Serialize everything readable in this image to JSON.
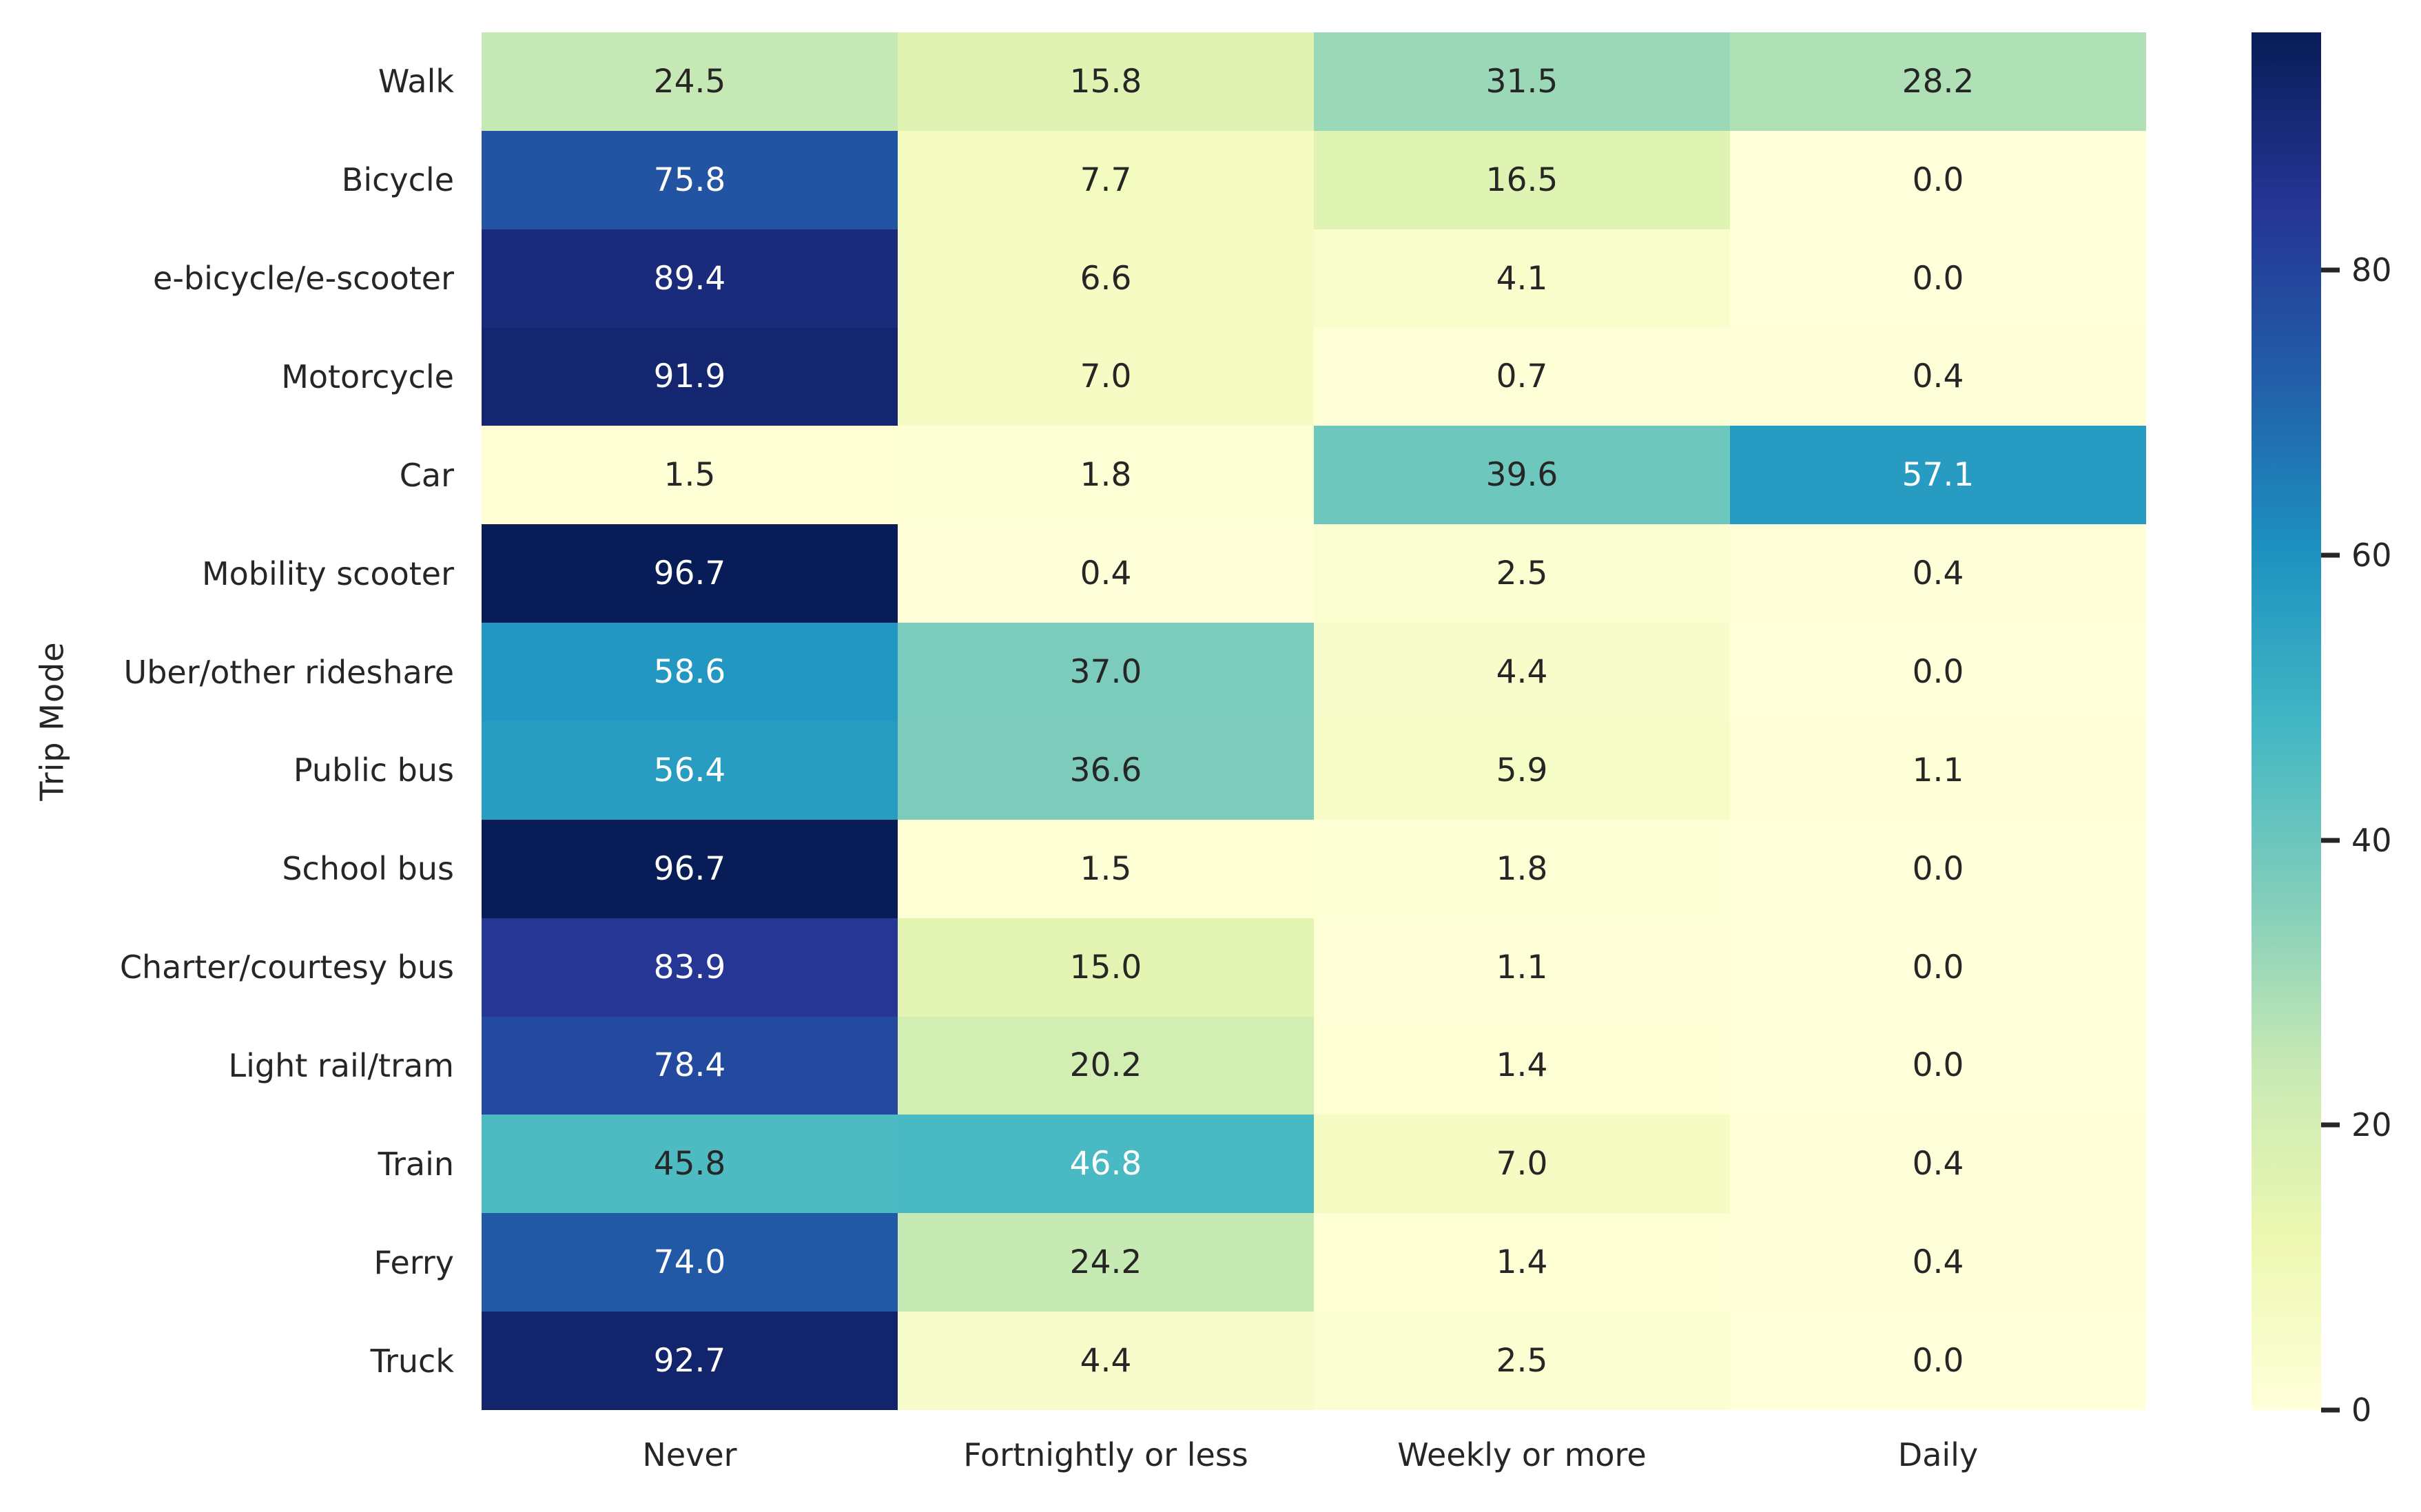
{
  "chart_data": {
    "type": "heatmap",
    "title": "",
    "xlabel": "",
    "ylabel": "Trip Mode",
    "rows": [
      "Walk",
      "Bicycle",
      "e-bicycle/e-scooter",
      "Motorcycle",
      "Car",
      "Mobility scooter",
      "Uber/other rideshare",
      "Public bus",
      "School bus",
      "Charter/courtesy bus",
      "Light rail/tram",
      "Train",
      "Ferry",
      "Truck"
    ],
    "columns": [
      "Never",
      "Fortnightly or less",
      "Weekly or more",
      "Daily"
    ],
    "values": [
      [
        24.5,
        15.8,
        31.5,
        28.2
      ],
      [
        75.8,
        7.7,
        16.5,
        0.0
      ],
      [
        89.4,
        6.6,
        4.1,
        0.0
      ],
      [
        91.9,
        7.0,
        0.7,
        0.4
      ],
      [
        1.5,
        1.8,
        39.6,
        57.1
      ],
      [
        96.7,
        0.4,
        2.5,
        0.4
      ],
      [
        58.6,
        37.0,
        4.4,
        0.0
      ],
      [
        56.4,
        36.6,
        5.9,
        1.1
      ],
      [
        96.7,
        1.5,
        1.8,
        0.0
      ],
      [
        83.9,
        15.0,
        1.1,
        0.0
      ],
      [
        78.4,
        20.2,
        1.4,
        0.0
      ],
      [
        45.8,
        46.8,
        7.0,
        0.4
      ],
      [
        74.0,
        24.2,
        1.4,
        0.4
      ],
      [
        92.7,
        4.4,
        2.5,
        0.0
      ]
    ],
    "vmin": 0.0,
    "vmax": 96.7,
    "value_decimals": 1,
    "grid": false,
    "legend_position": "colorbar-right",
    "colormap": {
      "name": "YlGnBu",
      "stops": [
        "#ffffd9",
        "#edf8b1",
        "#c7e9b4",
        "#7fcdbb",
        "#41b6c4",
        "#1d91c0",
        "#225ea8",
        "#253494",
        "#081d58"
      ]
    },
    "colorbar": {
      "ticks": [
        0,
        20,
        40,
        60,
        80
      ]
    },
    "annotation_text_colors": {
      "dark": "#262626",
      "light": "#ffffff"
    },
    "luminance_threshold": 0.408
  }
}
